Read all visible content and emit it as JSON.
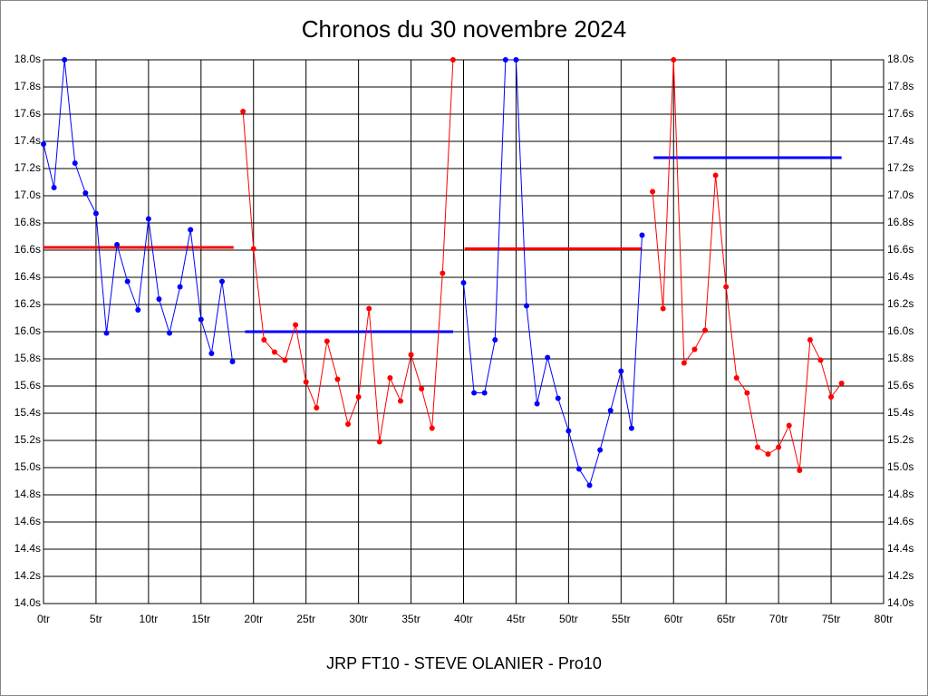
{
  "chart_data": {
    "type": "line",
    "title": "Chronos du 30 novembre 2024",
    "xlabel": "JRP FT10 - STEVE OLANIER - Pro10",
    "xlim": [
      0,
      80
    ],
    "ylim": [
      14.0,
      18.0
    ],
    "grid": true,
    "xticks": [
      {
        "value": 0,
        "label": "0tr"
      },
      {
        "value": 5,
        "label": "5tr"
      },
      {
        "value": 10,
        "label": "10tr"
      },
      {
        "value": 15,
        "label": "15tr"
      },
      {
        "value": 20,
        "label": "20tr"
      },
      {
        "value": 25,
        "label": "25tr"
      },
      {
        "value": 30,
        "label": "30tr"
      },
      {
        "value": 35,
        "label": "35tr"
      },
      {
        "value": 40,
        "label": "40tr"
      },
      {
        "value": 45,
        "label": "45tr"
      },
      {
        "value": 50,
        "label": "50tr"
      },
      {
        "value": 55,
        "label": "55tr"
      },
      {
        "value": 60,
        "label": "60tr"
      },
      {
        "value": 65,
        "label": "65tr"
      },
      {
        "value": 70,
        "label": "70tr"
      },
      {
        "value": 75,
        "label": "75tr"
      },
      {
        "value": 80,
        "label": "80tr"
      }
    ],
    "yticks": [
      {
        "value": 14.0,
        "label": "14.0s"
      },
      {
        "value": 14.2,
        "label": "14.2s"
      },
      {
        "value": 14.4,
        "label": "14.4s"
      },
      {
        "value": 14.6,
        "label": "14.6s"
      },
      {
        "value": 14.8,
        "label": "14.8s"
      },
      {
        "value": 15.0,
        "label": "15.0s"
      },
      {
        "value": 15.2,
        "label": "15.2s"
      },
      {
        "value": 15.4,
        "label": "15.4s"
      },
      {
        "value": 15.6,
        "label": "15.6s"
      },
      {
        "value": 15.8,
        "label": "15.8s"
      },
      {
        "value": 16.0,
        "label": "16.0s"
      },
      {
        "value": 16.2,
        "label": "16.2s"
      },
      {
        "value": 16.4,
        "label": "16.4s"
      },
      {
        "value": 16.6,
        "label": "16.6s"
      },
      {
        "value": 16.8,
        "label": "16.8s"
      },
      {
        "value": 17.0,
        "label": "17.0s"
      },
      {
        "value": 17.2,
        "label": "17.2s"
      },
      {
        "value": 17.4,
        "label": "17.4s"
      },
      {
        "value": 17.6,
        "label": "17.6s"
      },
      {
        "value": 17.8,
        "label": "17.8s"
      },
      {
        "value": 18.0,
        "label": "18.0s"
      }
    ],
    "series": [
      {
        "color": "#0000ff",
        "x": [
          0,
          1,
          2,
          3,
          4,
          5,
          6,
          7,
          8,
          9,
          10,
          11,
          12,
          13,
          14,
          15,
          16,
          17,
          18
        ],
        "values": [
          17.38,
          17.06,
          18.0,
          17.24,
          17.02,
          16.87,
          15.99,
          16.64,
          16.37,
          16.16,
          16.83,
          16.24,
          15.99,
          16.33,
          16.75,
          16.09,
          15.84,
          16.37,
          15.78
        ]
      },
      {
        "color": "#ff0000",
        "x": [
          19,
          20,
          21,
          22,
          23,
          24,
          25,
          26,
          27,
          28,
          29,
          30,
          31,
          32,
          33,
          34,
          35,
          36,
          37,
          38,
          39
        ],
        "values": [
          17.62,
          16.61,
          15.94,
          15.85,
          15.79,
          16.05,
          15.63,
          15.44,
          15.93,
          15.65,
          15.32,
          15.52,
          16.17,
          15.19,
          15.66,
          15.49,
          15.83,
          15.58,
          15.29,
          16.43,
          18.0
        ]
      },
      {
        "color": "#0000ff",
        "x": [
          40,
          41,
          42,
          43,
          44,
          45,
          46,
          47,
          48,
          49,
          50,
          51,
          52,
          53,
          54,
          55,
          56,
          57
        ],
        "values": [
          16.36,
          15.55,
          15.55,
          15.94,
          18.0,
          18.0,
          16.19,
          15.47,
          15.81,
          15.51,
          15.27,
          14.99,
          14.87,
          15.13,
          15.42,
          15.71,
          15.29,
          16.71
        ]
      },
      {
        "color": "#ff0000",
        "x": [
          58,
          59,
          60,
          61,
          62,
          63,
          64,
          65,
          66,
          67,
          68,
          69,
          70,
          71,
          72,
          73,
          74,
          75,
          76
        ],
        "values": [
          17.03,
          16.17,
          18.0,
          15.77,
          15.87,
          16.01,
          17.15,
          16.33,
          15.66,
          15.55,
          15.15,
          15.1,
          15.15,
          15.31,
          14.98,
          15.94,
          15.79,
          15.52,
          15.62
        ]
      }
    ],
    "averages": [
      {
        "color": "#ff0000",
        "value": 16.62,
        "x": [
          0,
          18.1
        ]
      },
      {
        "color": "#0000ff",
        "value": 16.0,
        "x": [
          19.2,
          39
        ]
      },
      {
        "color": "#ff0000",
        "value": 16.61,
        "x": [
          40.1,
          57
        ]
      },
      {
        "color": "#0000ff",
        "value": 17.28,
        "x": [
          58.1,
          76
        ]
      }
    ]
  }
}
